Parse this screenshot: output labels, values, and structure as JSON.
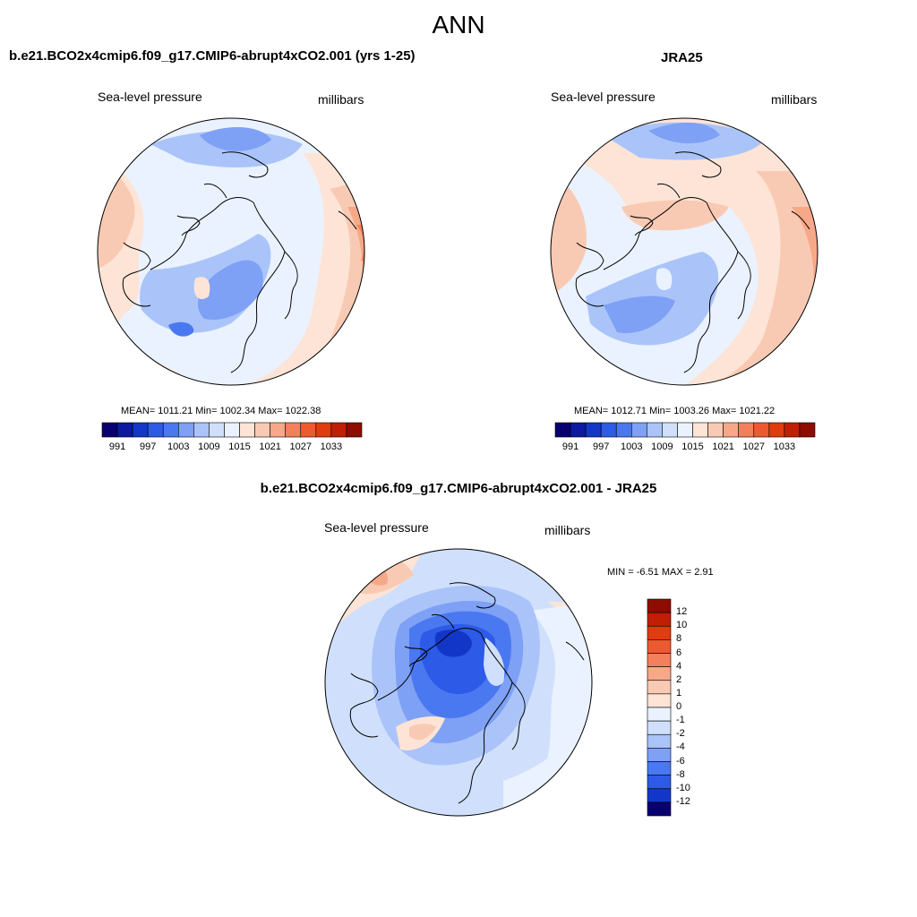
{
  "title": "ANN",
  "palette": [
    "#08006e",
    "#0b1aa0",
    "#1237c8",
    "#2d5ae6",
    "#4a78f0",
    "#7ea0f5",
    "#aac4fa",
    "#d0e0fc",
    "#eaf2ff",
    "#fde4d6",
    "#f9cab3",
    "#f7a888",
    "#f47f5c",
    "#ee5a30",
    "#e13b10",
    "#c01e05",
    "#8f0c00"
  ],
  "panels": {
    "model": {
      "title": "b.e21.BCO2x4cmip6.f09_g17.CMIP6-abrupt4xCO2.001 (yrs 1-25)",
      "variable": "Sea-level pressure",
      "units": "millibars",
      "stats": "MEAN= 1011.21   Min= 1002.34   Max= 1022.38",
      "colorbar_ticks": [
        "991",
        "997",
        "1003",
        "1009",
        "1015",
        "1021",
        "1027",
        "1033"
      ]
    },
    "obs": {
      "title": "JRA25",
      "variable": "Sea-level pressure",
      "units": "millibars",
      "stats": "MEAN= 1012.71   Min= 1003.26   Max= 1021.22",
      "colorbar_ticks": [
        "991",
        "997",
        "1003",
        "1009",
        "1015",
        "1021",
        "1027",
        "1033"
      ]
    },
    "diff": {
      "title": "b.e21.BCO2x4cmip6.f09_g17.CMIP6-abrupt4xCO2.001 - JRA25",
      "variable": "Sea-level pressure",
      "units": "millibars",
      "stats": "MIN =  -6.51 MAX =   2.91",
      "colorbar_ticks": [
        "12",
        "10",
        "8",
        "6",
        "4",
        "2",
        "1",
        "0",
        "-1",
        "-2",
        "-4",
        "-6",
        "-8",
        "-10",
        "-12"
      ]
    }
  }
}
